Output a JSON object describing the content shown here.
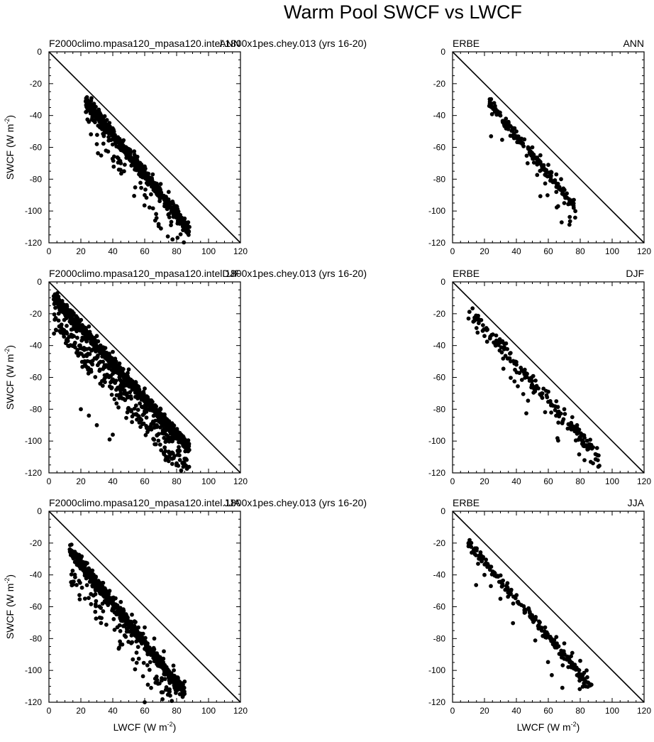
{
  "figure": {
    "title": "Warm Pool SWCF vs LWCF",
    "xlabel_text": "LWCF (W m",
    "ylabel_text": "SWCF (W m",
    "unit_exponent": "-2"
  },
  "chart_data": [
    {
      "type": "scatter",
      "left_label": "F2000climo.mpasa120_mpasa120.intel.1800x1pes.chey.013 (yrs 16-20)",
      "right_label": "ANN",
      "xlim": [
        0,
        120
      ],
      "ylim": [
        -120,
        0
      ],
      "xticks": [
        "0",
        "20",
        "40",
        "60",
        "80",
        "100",
        "120"
      ],
      "yticks": [
        "0",
        "-20",
        "-40",
        "-60",
        "-80",
        "-100",
        "-120"
      ],
      "reference_line": "one-to-one (SWCF = -LWCF)",
      "cluster": {
        "count": 620,
        "x_range": [
          23,
          88
        ],
        "slope": -1.25,
        "intercept": -2,
        "spread": 6,
        "tail_below": 14
      },
      "x": [
        24,
        26,
        28,
        30,
        33,
        36,
        40,
        45,
        50,
        55,
        60,
        65,
        70,
        75,
        80,
        84,
        86,
        82,
        78,
        25,
        30,
        45,
        60
      ],
      "y": [
        -32,
        -35,
        -38,
        -41,
        -44,
        -47,
        -51,
        -56,
        -62,
        -67,
        -72,
        -77,
        -83,
        -88,
        -97,
        -112,
        -113,
        -108,
        -100,
        -44,
        -58,
        -70,
        -90
      ]
    },
    {
      "type": "scatter",
      "left_label": "ERBE",
      "right_label": "ANN",
      "xlim": [
        0,
        120
      ],
      "ylim": [
        -120,
        0
      ],
      "xticks": [
        "0",
        "20",
        "40",
        "60",
        "80",
        "100",
        "120"
      ],
      "yticks": [
        "0",
        "-20",
        "-40",
        "-60",
        "-80",
        "-100",
        "-120"
      ],
      "reference_line": "one-to-one (SWCF = -LWCF)",
      "cluster": {
        "count": 170,
        "x_range": [
          23,
          77
        ],
        "slope": -1.2,
        "intercept": -5,
        "spread": 4.5,
        "tail_below": 8
      },
      "x": [
        23,
        27,
        30,
        35,
        40,
        45,
        50,
        55,
        60,
        65,
        68,
        70,
        76,
        70,
        65,
        47
      ],
      "y": [
        -34,
        -36,
        -40,
        -44,
        -50,
        -55,
        -60,
        -65,
        -71,
        -77,
        -80,
        -90,
        -93,
        -95,
        -88,
        -70
      ]
    },
    {
      "type": "scatter",
      "left_label": "F2000climo.mpasa120_mpasa120.intel.1800x1pes.chey.013 (yrs 16-20)",
      "right_label": "DJF",
      "xlim": [
        0,
        120
      ],
      "ylim": [
        -120,
        0
      ],
      "xticks": [
        "0",
        "20",
        "40",
        "60",
        "80",
        "100",
        "120"
      ],
      "yticks": [
        "0",
        "-20",
        "-40",
        "-60",
        "-80",
        "-100",
        "-120"
      ],
      "reference_line": "one-to-one (SWCF = -LWCF)",
      "cluster": {
        "count": 1300,
        "x_range": [
          3,
          88
        ],
        "slope": -1.12,
        "intercept": -6,
        "spread": 5,
        "tail_below": 30
      },
      "x": [
        3,
        5,
        8,
        12,
        18,
        25,
        30,
        40,
        50,
        60,
        70,
        78,
        84,
        86,
        20,
        25,
        30,
        38,
        40,
        80
      ],
      "y": [
        -9,
        -12,
        -15,
        -19,
        -23,
        -28,
        -34,
        -44,
        -55,
        -67,
        -80,
        -90,
        -97,
        -105,
        -80,
        -84,
        -90,
        -99,
        -96,
        -114
      ],
      "_": ""
    },
    {
      "type": "scatter",
      "left_label": "ERBE",
      "right_label": "DJF",
      "xlim": [
        0,
        120
      ],
      "ylim": [
        -120,
        0
      ],
      "xticks": [
        "0",
        "20",
        "40",
        "60",
        "80",
        "100",
        "120"
      ],
      "yticks": [
        "0",
        "-20",
        "-40",
        "-60",
        "-80",
        "-100",
        "-120"
      ],
      "reference_line": "one-to-one (SWCF = -LWCF)",
      "cluster": {
        "count": 190,
        "x_range": [
          10,
          92
        ],
        "slope": -1.15,
        "intercept": -6,
        "spread": 7,
        "tail_below": 14
      },
      "x": [
        10,
        13,
        15,
        20,
        27,
        35,
        40,
        45,
        52,
        60,
        65,
        70,
        75,
        78,
        80,
        82,
        85,
        88,
        91
      ],
      "y": [
        -23,
        -25,
        -29,
        -34,
        -40,
        -48,
        -52,
        -58,
        -62,
        -69,
        -75,
        -80,
        -85,
        -90,
        -98,
        -103,
        -105,
        -114,
        -112
      ]
    },
    {
      "type": "scatter",
      "left_label": "F2000climo.mpasa120_mpasa120.intel.1800x1pes.chey.013 (yrs 16-20)",
      "right_label": "JJA",
      "xlim": [
        0,
        120
      ],
      "ylim": [
        -120,
        0
      ],
      "xticks": [
        "0",
        "20",
        "40",
        "60",
        "80",
        "100",
        "120"
      ],
      "yticks": [
        "0",
        "-20",
        "-40",
        "-60",
        "-80",
        "-100",
        "-120"
      ],
      "reference_line": "one-to-one (SWCF = -LWCF)",
      "cluster": {
        "count": 700,
        "x_range": [
          13,
          85
        ],
        "slope": -1.25,
        "intercept": -8,
        "spread": 6,
        "tail_below": 20
      },
      "x": [
        13,
        15,
        18,
        22,
        27,
        32,
        38,
        45,
        52,
        60,
        66,
        72,
        78,
        85,
        62,
        64,
        60
      ],
      "y": [
        -24,
        -27,
        -31,
        -35,
        -40,
        -45,
        -50,
        -57,
        -65,
        -73,
        -80,
        -88,
        -97,
        -107,
        -109,
        -111,
        -120
      ]
    },
    {
      "type": "scatter",
      "left_label": "ERBE",
      "right_label": "JJA",
      "xlim": [
        0,
        120
      ],
      "ylim": [
        -120,
        0
      ],
      "xticks": [
        "0",
        "20",
        "40",
        "60",
        "80",
        "100",
        "120"
      ],
      "yticks": [
        "0",
        "-20",
        "-40",
        "-60",
        "-80",
        "-100",
        "-120"
      ],
      "reference_line": "one-to-one (SWCF = -LWCF)",
      "cluster": {
        "count": 200,
        "x_range": [
          10,
          87
        ],
        "slope": -1.18,
        "intercept": -8,
        "spread": 4.5,
        "tail_below": 6
      },
      "x": [
        10,
        12,
        14,
        16,
        20,
        24,
        30,
        38,
        45,
        52,
        58,
        65,
        70,
        75,
        80,
        84,
        87,
        78
      ],
      "y": [
        -22,
        -26,
        -27,
        -33,
        -40,
        -47,
        -55,
        -58,
        -62,
        -68,
        -73,
        -79,
        -83,
        -89,
        -94,
        -100,
        -109,
        -103
      ]
    }
  ]
}
